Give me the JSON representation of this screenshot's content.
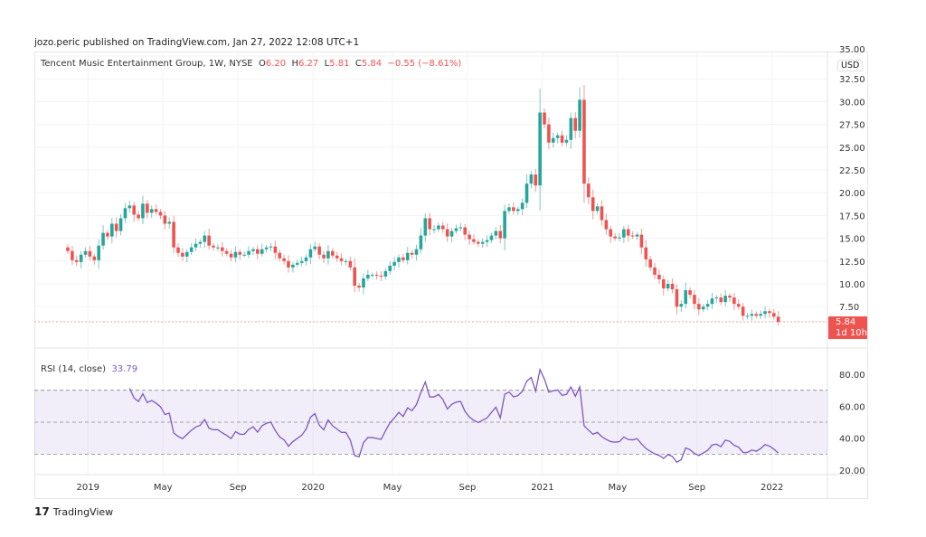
{
  "header": {
    "published": "jozo.peric published on TradingView.com, Jan 27, 2022 12:08 UTC+1"
  },
  "legend": {
    "symbol": "Tencent Music Entertainment Group, 1W, NYSE",
    "o_label": "O",
    "o": "6.20",
    "h_label": "H",
    "h": "6.27",
    "l_label": "L",
    "l": "5.81",
    "c_label": "C",
    "c": "5.84",
    "change": "−0.55 (−8.61%)"
  },
  "price_axis": {
    "currency": "USD",
    "last_price": "5.84",
    "countdown": "1d 10h"
  },
  "rsi": {
    "label": "RSI (14, close)",
    "value": "33.79"
  },
  "footer": {
    "brand": "TradingView"
  },
  "colors": {
    "up": "#26a69a",
    "down": "#ef5350",
    "rsi": "#7e57c2"
  },
  "chart_data": [
    {
      "type": "candlestick",
      "title": "Tencent Music Entertainment Group, 1W, NYSE",
      "ylabel": "USD",
      "ylim": [
        5,
        35
      ],
      "yticks": [
        "35.00",
        "32.50",
        "30.00",
        "27.50",
        "25.00",
        "22.50",
        "20.00",
        "17.50",
        "15.00",
        "12.50",
        "10.00",
        "7.50"
      ],
      "ytick_values": [
        35,
        32.5,
        30,
        27.5,
        25,
        22.5,
        20,
        17.5,
        15,
        12.5,
        10,
        7.5
      ],
      "xticks": [
        "2019",
        "May",
        "Sep",
        "2020",
        "May",
        "Sep",
        "2021",
        "May",
        "Sep",
        "2022"
      ],
      "xtick_week_index": [
        6,
        23,
        40,
        57,
        75,
        92,
        109,
        126,
        144,
        161
      ],
      "close": [
        13.6,
        12.6,
        12.4,
        13.2,
        13.6,
        13.0,
        12.6,
        14.2,
        15.6,
        15.2,
        16.6,
        15.8,
        17.2,
        18.3,
        18.6,
        17.6,
        17.2,
        18.8,
        17.8,
        18.2,
        17.9,
        17.5,
        16.6,
        16.8,
        14.0,
        13.4,
        13.0,
        13.5,
        14.0,
        14.4,
        14.6,
        15.3,
        14.2,
        14.0,
        14.0,
        13.6,
        13.3,
        12.9,
        13.5,
        13.2,
        13.2,
        13.6,
        13.8,
        13.3,
        13.8,
        14.0,
        14.1,
        13.4,
        12.8,
        12.5,
        11.8,
        12.1,
        12.3,
        12.5,
        12.9,
        13.8,
        14.1,
        13.2,
        12.8,
        13.6,
        13.1,
        12.8,
        12.5,
        12.5,
        11.8,
        9.8,
        9.6,
        10.6,
        11.0,
        11.0,
        10.9,
        10.8,
        11.4,
        12.0,
        12.4,
        12.9,
        12.6,
        13.4,
        13.2,
        13.8,
        15.3,
        17.2,
        16.0,
        16.0,
        16.4,
        16.0,
        15.2,
        15.8,
        16.1,
        16.2,
        15.4,
        14.9,
        14.6,
        14.4,
        14.6,
        14.8,
        15.3,
        15.8,
        15.0,
        18.0,
        18.4,
        18.0,
        18.2,
        18.9,
        21.0,
        22.0,
        20.8,
        28.8,
        27.5,
        25.5,
        26.0,
        26.3,
        25.5,
        25.8,
        28.2,
        26.8,
        30.2,
        21.0,
        19.5,
        18.0,
        18.5,
        17.0,
        16.0,
        15.2,
        15.0,
        15.1,
        16.0,
        15.3,
        15.2,
        15.4,
        14.0,
        12.7,
        11.8,
        11.0,
        10.5,
        9.5,
        10.0,
        9.4,
        7.5,
        7.8,
        9.3,
        8.8,
        7.8,
        7.2,
        7.5,
        7.8,
        8.4,
        8.5,
        8.0,
        8.7,
        8.5,
        7.8,
        7.5,
        6.5,
        6.5,
        6.7,
        6.5,
        6.7,
        7.0,
        6.8,
        6.4,
        5.84
      ]
    },
    {
      "type": "line",
      "title": "RSI (14, close)",
      "ylim": [
        20,
        90
      ],
      "yticks": [
        "80.00",
        "60.00",
        "40.00",
        "20.00"
      ],
      "ytick_values": [
        80,
        60,
        40,
        20
      ],
      "bands": [
        70,
        50,
        30
      ]
    }
  ]
}
